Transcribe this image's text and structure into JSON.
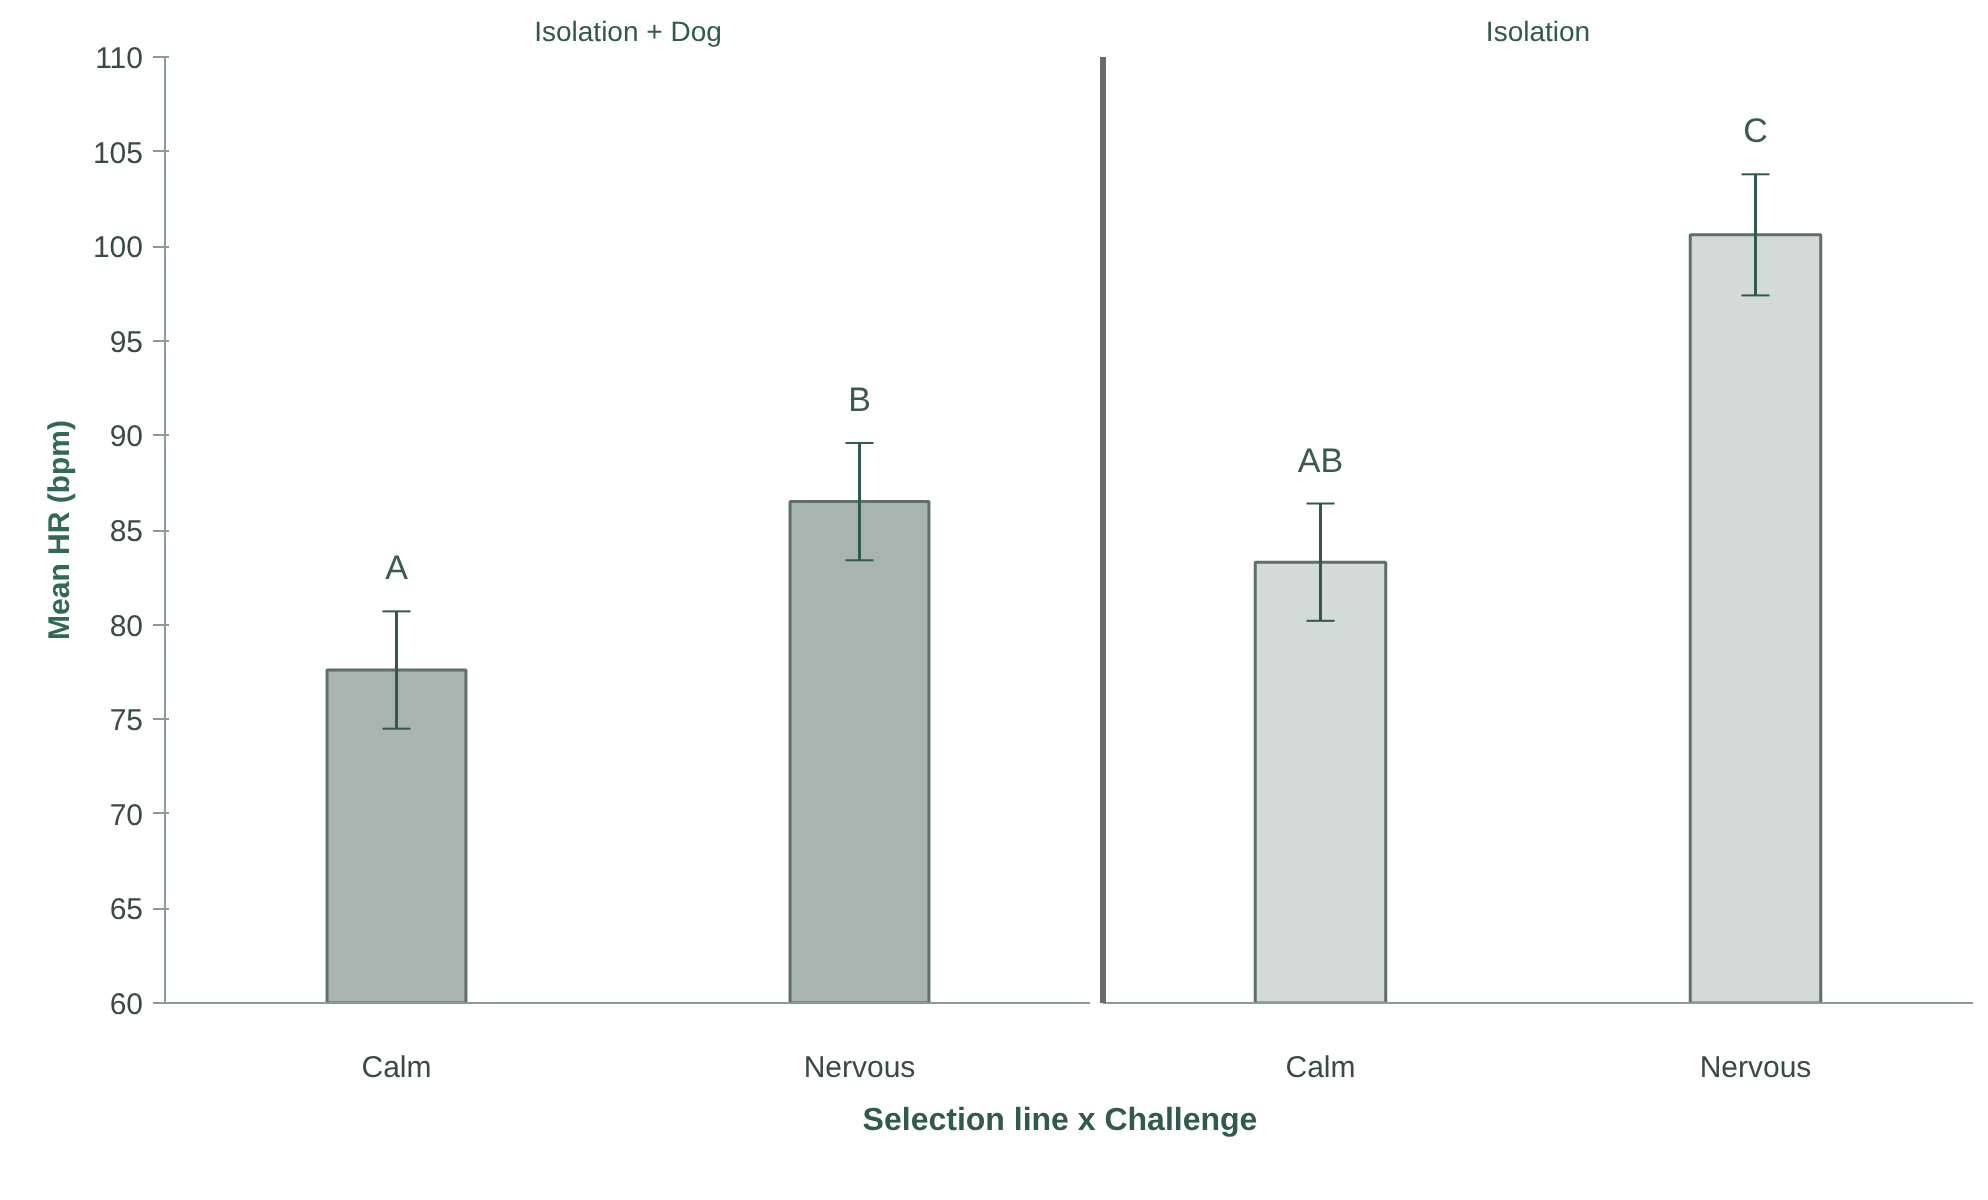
{
  "chart_data": [
    {
      "type": "bar",
      "title": "Isolation + Dog",
      "ylabel": "Mean HR (bpm)",
      "xlabel": "Selection line x Challenge",
      "categories": [
        "Calm",
        "Nervous"
      ],
      "values": [
        77.6,
        86.5
      ],
      "errors": [
        3.1,
        3.1
      ],
      "color": "#a9b4b0",
      "ylim": [
        60,
        110
      ],
      "yticks": [
        60,
        65,
        70,
        75,
        80,
        85,
        90,
        95,
        100,
        105,
        110
      ],
      "grid": false,
      "annotations": [
        "A",
        "B"
      ]
    },
    {
      "type": "bar",
      "title": "Isolation",
      "categories": [
        "Calm",
        "Nervous"
      ],
      "values": [
        83.3,
        100.6
      ],
      "errors": [
        3.1,
        3.2
      ],
      "color": "#d2dbd7",
      "ylim": [
        60,
        110
      ],
      "yticks": [
        60,
        65,
        70,
        75,
        80,
        85,
        90,
        95,
        100,
        105,
        110
      ],
      "grid": false,
      "tick_labels": "x",
      "annotations": [
        "AB",
        "C"
      ]
    }
  ]
}
